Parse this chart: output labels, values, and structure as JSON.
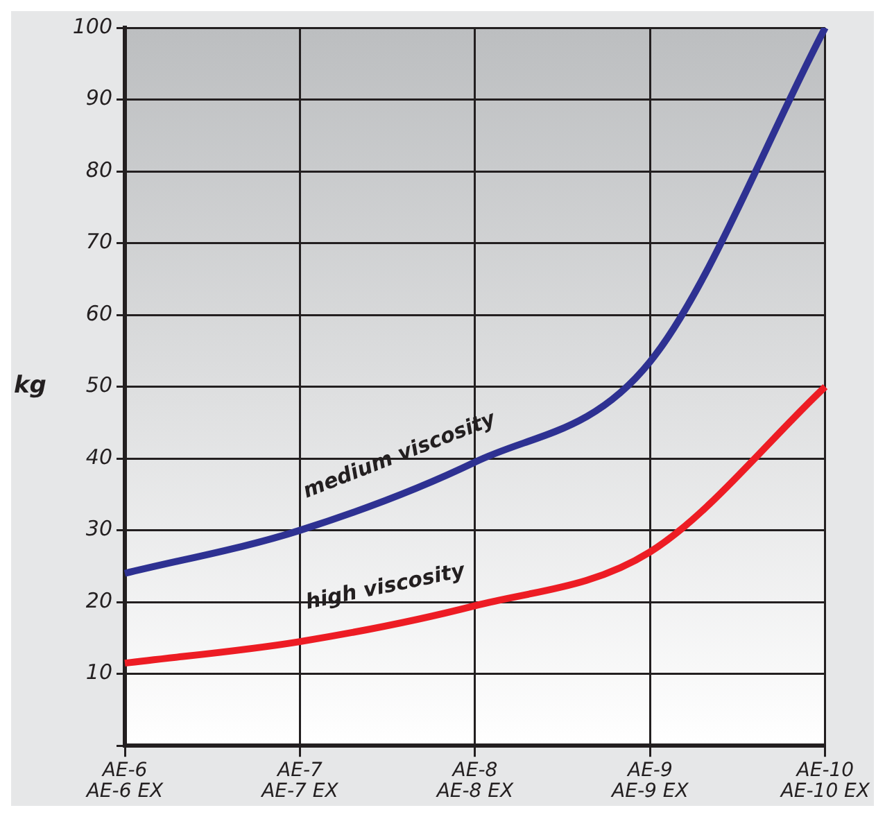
{
  "chart_data": {
    "type": "line",
    "ylabel": "kg",
    "categories": [
      "AE-6\nAE-6 EX",
      "AE-7\nAE-7 EX",
      "AE-8\nAE-8 EX",
      "AE-9\nAE-9 EX",
      "AE-10\nAE-10 EX"
    ],
    "series": [
      {
        "name": "medium viscosity",
        "color": "#2e3192",
        "values": [
          24,
          30,
          39.5,
          53.5,
          100
        ]
      },
      {
        "name": "high viscosity",
        "color": "#ed1c24",
        "values": [
          11.5,
          14.5,
          19.5,
          27,
          50
        ]
      }
    ],
    "ylim": [
      0,
      100
    ],
    "yticks": [
      {
        "value": 0,
        "label": null
      },
      10,
      20,
      30,
      40,
      50,
      60,
      70,
      80,
      90,
      100
    ],
    "grid": true,
    "legend": false,
    "marker": "none",
    "line_style": "solid"
  }
}
